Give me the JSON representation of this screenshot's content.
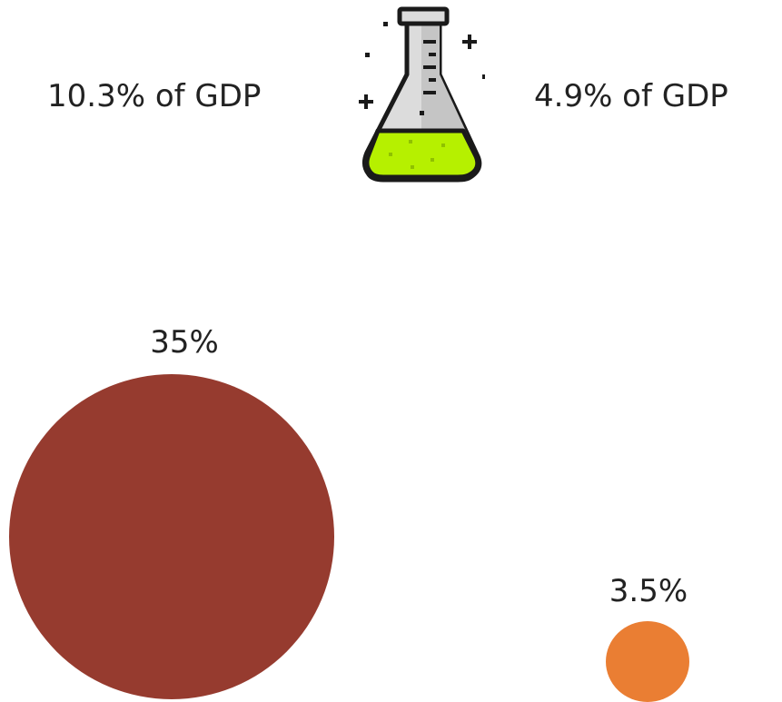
{
  "stats": {
    "left": "10.3% of GDP",
    "right": "4.9% of GDP"
  },
  "bubbles": {
    "large": {
      "label": "35%",
      "value": 35,
      "color": "#963b2f"
    },
    "small": {
      "label": "3.5%",
      "value": 3.5,
      "color": "#ea7e33"
    }
  },
  "icon": {
    "name": "flask-icon",
    "liquid_color": "#b6f000",
    "glass_color": "#d6d6d6"
  }
}
